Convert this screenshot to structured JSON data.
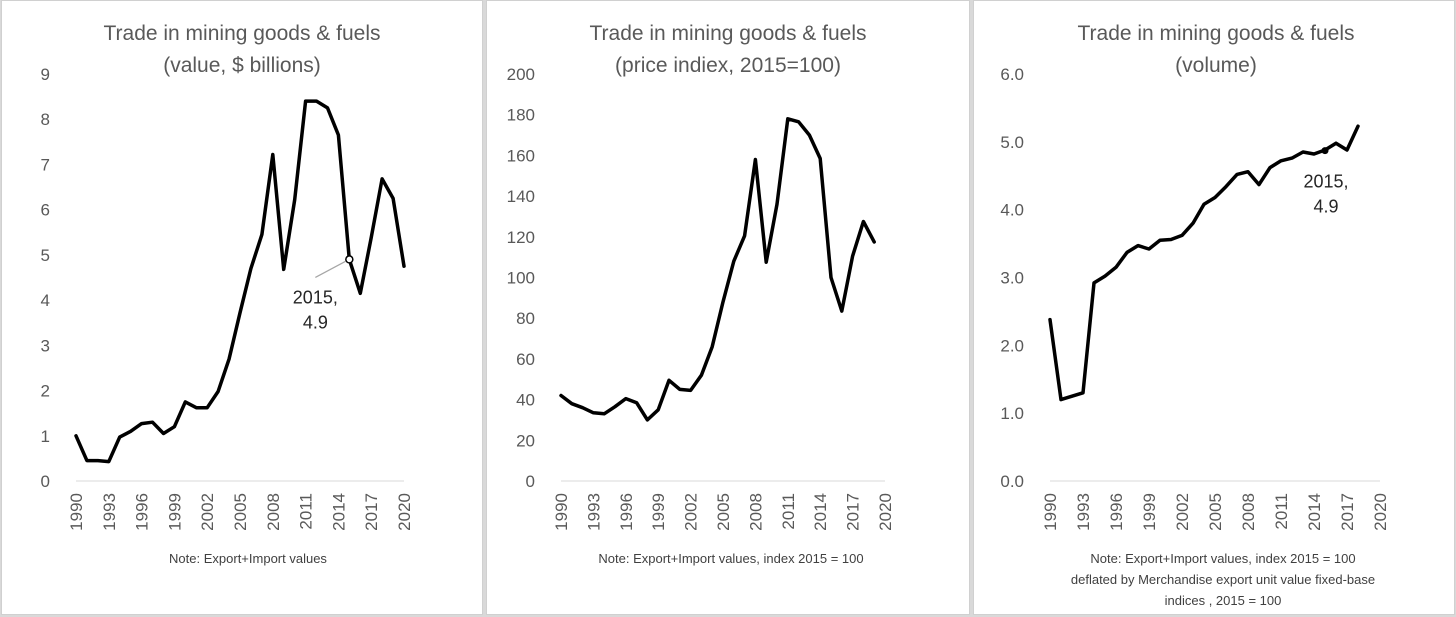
{
  "colors": {
    "line": "#000000",
    "text": "#595959",
    "axis": "#d9d9d9",
    "background": "#ffffff"
  },
  "chart_data": [
    {
      "type": "line",
      "title": [
        "Trade in mining goods & fuels",
        "(value, $ billions)"
      ],
      "ylim": [
        0,
        9
      ],
      "yticks": [
        "0",
        "1",
        "2",
        "3",
        "4",
        "5",
        "6",
        "7",
        "8",
        "9"
      ],
      "ytick_values": [
        0,
        1,
        2,
        3,
        4,
        5,
        6,
        7,
        8,
        9
      ],
      "xticks": [
        "1990",
        "1993",
        "1996",
        "1999",
        "2002",
        "2005",
        "2008",
        "2011",
        "2014",
        "2017",
        "2020"
      ],
      "x": [
        1990,
        1991,
        1992,
        1993,
        1994,
        1995,
        1996,
        1997,
        1998,
        1999,
        2000,
        2001,
        2002,
        2003,
        2004,
        2005,
        2006,
        2007,
        2008,
        2009,
        2010,
        2011,
        2012,
        2013,
        2014,
        2015,
        2016,
        2017,
        2018,
        2019,
        2020
      ],
      "values": [
        1.0,
        0.45,
        0.45,
        0.43,
        0.97,
        1.1,
        1.27,
        1.3,
        1.05,
        1.2,
        1.75,
        1.62,
        1.62,
        1.98,
        2.7,
        3.72,
        4.7,
        5.45,
        7.22,
        4.68,
        6.22,
        8.4,
        8.4,
        8.25,
        7.65,
        4.9,
        4.15,
        5.38,
        6.68,
        6.25,
        4.75
      ],
      "annotation": {
        "x": 2015,
        "y": 4.9,
        "label_line1": "2015,",
        "label_line2": "4.9"
      },
      "note": [
        "Note: Export+Import values"
      ]
    },
    {
      "type": "line",
      "title": [
        "Trade in mining goods & fuels",
        "(price indiex, 2015=100)"
      ],
      "ylim": [
        0,
        200
      ],
      "yticks": [
        "0",
        "20",
        "40",
        "60",
        "80",
        "100",
        "120",
        "140",
        "160",
        "180",
        "200"
      ],
      "ytick_values": [
        0,
        20,
        40,
        60,
        80,
        100,
        120,
        140,
        160,
        180,
        200
      ],
      "xticks": [
        "1990",
        "1993",
        "1996",
        "1999",
        "2002",
        "2005",
        "2008",
        "2011",
        "2014",
        "2017",
        "2020"
      ],
      "x": [
        1990,
        1991,
        1992,
        1993,
        1994,
        1995,
        1996,
        1997,
        1998,
        1999,
        2000,
        2001,
        2002,
        2003,
        2004,
        2005,
        2006,
        2007,
        2008,
        2009,
        2010,
        2011,
        2012,
        2013,
        2014,
        2015,
        2016,
        2017,
        2018,
        2019
      ],
      "values": [
        42,
        38,
        36,
        33.5,
        33,
        36.5,
        40.5,
        38.5,
        30,
        35,
        49.5,
        45,
        44.5,
        52,
        66,
        88,
        108,
        120.5,
        158,
        107.5,
        136,
        178,
        176.5,
        170,
        158.5,
        100,
        83.5,
        110.5,
        127.5,
        117.5
      ],
      "note": [
        "Note: Export+Import values, index 2015 = 100"
      ]
    },
    {
      "type": "line",
      "title": [
        "Trade in mining goods & fuels",
        "(volume)"
      ],
      "ylim": [
        0,
        6
      ],
      "yticks": [
        "0.0",
        "1.0",
        "2.0",
        "3.0",
        "4.0",
        "5.0",
        "6.0"
      ],
      "ytick_values": [
        0,
        1,
        2,
        3,
        4,
        5,
        6
      ],
      "xticks": [
        "1990",
        "1993",
        "1996",
        "1999",
        "2002",
        "2005",
        "2008",
        "2011",
        "2014",
        "2017",
        "2020"
      ],
      "x": [
        1990,
        1991,
        1992,
        1993,
        1994,
        1995,
        1996,
        1997,
        1998,
        1999,
        2000,
        2001,
        2002,
        2003,
        2004,
        2005,
        2006,
        2007,
        2008,
        2009,
        2010,
        2011,
        2012,
        2013,
        2014,
        2015,
        2016,
        2017,
        2018
      ],
      "values": [
        2.38,
        1.2,
        1.25,
        1.3,
        2.92,
        3.02,
        3.15,
        3.37,
        3.47,
        3.42,
        3.55,
        3.56,
        3.62,
        3.8,
        4.08,
        4.18,
        4.34,
        4.52,
        4.56,
        4.37,
        4.62,
        4.72,
        4.76,
        4.85,
        4.82,
        4.88,
        4.98,
        4.88,
        5.23
      ],
      "annotation": {
        "x": 2015,
        "y": 4.87,
        "label_line1": "2015,",
        "label_line2": "4.9"
      },
      "note": [
        "Note: Export+Import values, index 2015 = 100",
        "deflated by Merchandise export unit value fixed-base",
        "indices , 2015 = 100"
      ]
    }
  ]
}
